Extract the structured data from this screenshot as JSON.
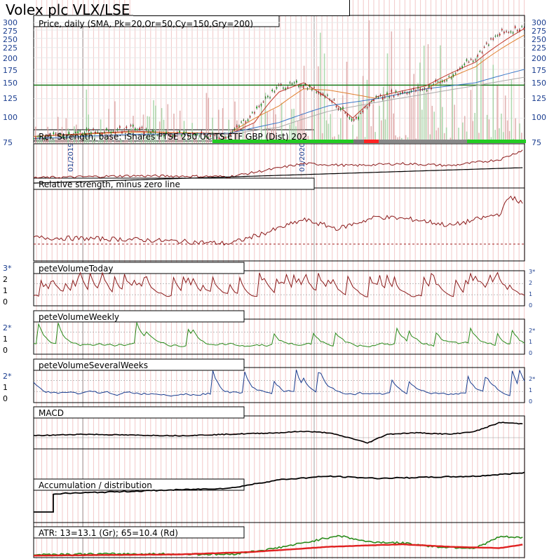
{
  "title": "Volex plc VLX/LSE",
  "chart_data": {
    "type": "line",
    "panels": [
      {
        "key": "price",
        "title": "Price, daily (SMA, Pk=20,Or=50,Cy=150,Gry=200)",
        "y_ticks": [
          "300",
          "275",
          "250",
          "225",
          "200",
          "175",
          "150",
          "125",
          "100",
          "75"
        ],
        "y_scale": "log",
        "ylim": [
          75,
          310
        ],
        "horizontal_line": 146,
        "series": [
          {
            "role": "close",
            "color": "#1a7a1a",
            "x": [
              0,
              5,
              10,
              15,
              20,
              25,
              30,
              35,
              40,
              45,
              50,
              55,
              60,
              65,
              70,
              75,
              80,
              82,
              85,
              88,
              90,
              92,
              95,
              100
            ],
            "values": [
              80,
              81,
              86,
              85,
              89,
              84,
              83,
              82,
              82,
              108,
              144,
              148,
              128,
              95,
              128,
              135,
              140,
              150,
              158,
              190,
              200,
              228,
              265,
              285
            ]
          },
          {
            "role": "SMA20",
            "color": "#c0392b",
            "x": [
              0,
              20,
              40,
              45,
              50,
              55,
              60,
              65,
              70,
              80,
              90,
              100
            ],
            "values": [
              81,
              86,
              83,
              95,
              135,
              150,
              125,
              100,
              128,
              145,
              190,
              280
            ]
          },
          {
            "role": "SMA50",
            "color": "#e08030",
            "x": [
              0,
              20,
              40,
              50,
              55,
              60,
              70,
              80,
              90,
              100
            ],
            "values": [
              81,
              85,
              84,
              115,
              140,
              138,
              125,
              140,
              180,
              260
            ]
          },
          {
            "role": "SMA150",
            "color": "#3a78c8",
            "x": [
              0,
              20,
              40,
              50,
              60,
              70,
              80,
              90,
              100
            ],
            "values": [
              79,
              83,
              84,
              95,
              115,
              125,
              140,
              150,
              175
            ]
          },
          {
            "role": "SMA200",
            "color": "#aaaaaa",
            "x": [
              0,
              20,
              40,
              50,
              60,
              70,
              80,
              90,
              100
            ],
            "values": [
              78,
              82,
              83,
              90,
              108,
              120,
              132,
              145,
              160
            ]
          }
        ]
      },
      {
        "key": "rel",
        "title": "Rel. Strength, base: iShares FTSE 250 UCITS ETF GBP (Dist) 202"
      },
      {
        "key": "relzero",
        "title": "Relative strength, minus zero line"
      },
      {
        "key": "vtoday",
        "title": "peteVolumeToday",
        "y_ticks": [
          "3*",
          "2",
          "1",
          "0"
        ],
        "right_ticks": [
          "3*",
          "2",
          "1",
          "0"
        ]
      },
      {
        "key": "vweekly",
        "title": "peteVolumeWeekly",
        "y_ticks": [
          "2*",
          "1",
          "0"
        ],
        "right_ticks": [
          "2*",
          "1",
          "0"
        ]
      },
      {
        "key": "vseveral",
        "title": "peteVolumeSeveralWeeks",
        "y_ticks": [
          "2*",
          "1",
          "0"
        ],
        "right_ticks": [
          "2*",
          "1",
          "0"
        ]
      },
      {
        "key": "macd",
        "title": "MACD"
      },
      {
        "key": "accdist",
        "title": "Accumulation / distribution"
      },
      {
        "key": "atr",
        "title": "ATR: 13=13.1 (Gr); 65=10.4 (Rd)"
      }
    ],
    "x_ticks": [
      "01/2019",
      "01/2020"
    ],
    "grid": true
  },
  "colors": {
    "accent_blue": "#1a3d8f",
    "price_green": "#1a7a1a",
    "sma_red": "#c0392b",
    "macd_signal": "#d02020",
    "atr_green": "#2a8a1a",
    "atr_red": "#e02020",
    "vol_red": "#8b1a1a",
    "vol_green": "#2a8a1a",
    "vol_blue": "#1a3d8f"
  }
}
